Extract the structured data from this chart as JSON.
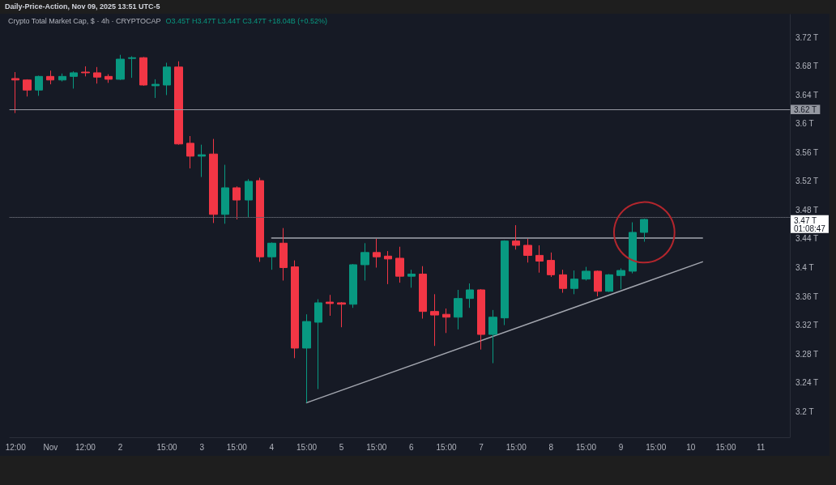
{
  "chart_data": {
    "type": "candlestick",
    "title": "Crypto Total Market Cap, $ · 4h · CRYPTOCAP",
    "subtitle": "O3.45T H3.47T L3.44T C3.47T +18.04B (+0.52%)",
    "annotations": [
      "Daily-Price-Action, Nov 09, 2025 13:51 UTC-5"
    ],
    "categories": [
      "12:00",
      null,
      null,
      "Nov",
      null,
      null,
      "12:00",
      null,
      null,
      "2",
      null,
      null,
      null,
      "15:00",
      null,
      null,
      "3",
      null,
      null,
      "15:00",
      null,
      null,
      "4",
      null,
      null,
      "15:00",
      null,
      null,
      "5",
      null,
      null,
      "15:00",
      null,
      null,
      "6",
      null,
      null,
      "15:00",
      null,
      null,
      "7",
      null,
      null,
      "15:00",
      null,
      null,
      "8",
      null,
      null,
      "15:00",
      null,
      null,
      "9",
      null,
      null,
      "15:00",
      null,
      null,
      "10",
      null,
      null,
      "15:00",
      null,
      null,
      "11",
      null,
      null
    ],
    "ohlc": [
      [
        3.663,
        3.672,
        3.615,
        3.661
      ],
      [
        3.661,
        3.662,
        3.638,
        3.647
      ],
      [
        3.647,
        3.667,
        3.639,
        3.666
      ],
      [
        3.666,
        3.674,
        3.655,
        3.661
      ],
      [
        3.661,
        3.67,
        3.659,
        3.666
      ],
      [
        3.666,
        3.673,
        3.649,
        3.671
      ],
      [
        3.672,
        3.68,
        3.666,
        3.671
      ],
      [
        3.671,
        3.679,
        3.656,
        3.665
      ],
      [
        3.666,
        3.669,
        3.657,
        3.662
      ],
      [
        3.662,
        3.696,
        3.661,
        3.69
      ],
      [
        3.691,
        3.694,
        3.664,
        3.692
      ],
      [
        3.692,
        3.693,
        3.653,
        3.654
      ],
      [
        3.653,
        3.662,
        3.636,
        3.655
      ],
      [
        3.654,
        3.685,
        3.64,
        3.679
      ],
      [
        3.679,
        3.687,
        3.571,
        3.572
      ],
      [
        3.573,
        3.583,
        3.538,
        3.555
      ],
      [
        3.555,
        3.571,
        3.526,
        3.557
      ],
      [
        3.558,
        3.579,
        3.462,
        3.474
      ],
      [
        3.474,
        3.543,
        3.461,
        3.511
      ],
      [
        3.511,
        3.513,
        3.467,
        3.494
      ],
      [
        3.494,
        3.523,
        3.47,
        3.52
      ],
      [
        3.521,
        3.525,
        3.408,
        3.415
      ],
      [
        3.415,
        3.435,
        3.397,
        3.434
      ],
      [
        3.434,
        3.455,
        3.382,
        3.4
      ],
      [
        3.401,
        3.41,
        3.274,
        3.288
      ],
      [
        3.288,
        3.335,
        3.212,
        3.325
      ],
      [
        3.324,
        3.356,
        3.231,
        3.351
      ],
      [
        3.352,
        3.362,
        3.333,
        3.35
      ],
      [
        3.351,
        3.352,
        3.317,
        3.349
      ],
      [
        3.349,
        3.405,
        3.344,
        3.404
      ],
      [
        3.404,
        3.434,
        3.382,
        3.421
      ],
      [
        3.421,
        3.44,
        3.4,
        3.415
      ],
      [
        3.416,
        3.423,
        3.377,
        3.412
      ],
      [
        3.413,
        3.429,
        3.379,
        3.388
      ],
      [
        3.388,
        3.397,
        3.372,
        3.391
      ],
      [
        3.391,
        3.402,
        3.329,
        3.339
      ],
      [
        3.339,
        3.363,
        3.291,
        3.334
      ],
      [
        3.335,
        3.343,
        3.309,
        3.331
      ],
      [
        3.331,
        3.369,
        3.314,
        3.357
      ],
      [
        3.357,
        3.378,
        3.344,
        3.369
      ],
      [
        3.369,
        3.37,
        3.286,
        3.307
      ],
      [
        3.307,
        3.341,
        3.267,
        3.331
      ],
      [
        3.33,
        3.438,
        3.32,
        3.437
      ],
      [
        3.437,
        3.459,
        3.425,
        3.431
      ],
      [
        3.431,
        3.44,
        3.407,
        3.417
      ],
      [
        3.417,
        3.431,
        3.393,
        3.409
      ],
      [
        3.41,
        3.421,
        3.387,
        3.39
      ],
      [
        3.39,
        3.397,
        3.365,
        3.371
      ],
      [
        3.371,
        3.396,
        3.363,
        3.384
      ],
      [
        3.384,
        3.401,
        3.382,
        3.395
      ],
      [
        3.395,
        3.396,
        3.36,
        3.367
      ],
      [
        3.367,
        3.391,
        3.366,
        3.39
      ],
      [
        3.389,
        3.399,
        3.37,
        3.396
      ],
      [
        3.395,
        3.463,
        3.392,
        3.449
      ],
      [
        3.449,
        3.468,
        3.436,
        3.467
      ],
      null,
      null,
      null,
      null,
      null,
      null,
      null,
      null,
      null,
      null,
      null,
      null
    ],
    "colors": [
      "#f23645",
      "#f23645",
      "#089981",
      "#f23645",
      "#089981",
      "#089981",
      "#f23645",
      "#f23645",
      "#f23645",
      "#089981",
      "#089981",
      "#f23645",
      "#089981",
      "#089981",
      "#f23645",
      "#f23645",
      "#089981",
      "#f23645",
      "#089981",
      "#f23645",
      "#089981",
      "#f23645",
      "#089981",
      "#f23645",
      "#f23645",
      "#089981",
      "#089981",
      "#f23645",
      "#f23645",
      "#089981",
      "#089981",
      "#f23645",
      "#f23645",
      "#f23645",
      "#089981",
      "#f23645",
      "#f23645",
      "#f23645",
      "#089981",
      "#089981",
      "#f23645",
      "#089981",
      "#089981",
      "#f23645",
      "#f23645",
      "#f23645",
      "#f23645",
      "#f23645",
      "#089981",
      "#089981",
      "#f23645",
      "#089981",
      "#089981",
      "#089981",
      "#089981",
      null,
      null,
      null,
      null,
      null,
      null,
      null,
      null,
      null,
      null,
      null,
      null
    ],
    "series": [
      {
        "type": "line",
        "color": "#a3a6af",
        "values": [
          null,
          null,
          null,
          null,
          null,
          null,
          null,
          null,
          null,
          null,
          null,
          null,
          null,
          null,
          null,
          null,
          null,
          null,
          null,
          null,
          null,
          null,
          null,
          null,
          null,
          3.212,
          null,
          null,
          null,
          null,
          null,
          null,
          null,
          null,
          null,
          null,
          null,
          null,
          null,
          null,
          null,
          null,
          null,
          null,
          null,
          null,
          null,
          null,
          null,
          null,
          null,
          null,
          null,
          null,
          null,
          null,
          null,
          null,
          null,
          3.408,
          null,
          null,
          null,
          null,
          null,
          null,
          null
        ]
      },
      {
        "type": "line",
        "color": "#a3a6af",
        "values": [
          null,
          null,
          null,
          null,
          null,
          null,
          null,
          null,
          null,
          null,
          null,
          null,
          null,
          null,
          null,
          null,
          null,
          null,
          null,
          null,
          null,
          null,
          3.441,
          null,
          null,
          null,
          null,
          null,
          null,
          null,
          null,
          null,
          null,
          null,
          null,
          null,
          null,
          null,
          null,
          null,
          null,
          null,
          null,
          null,
          null,
          null,
          null,
          null,
          null,
          null,
          null,
          null,
          null,
          null,
          null,
          null,
          null,
          null,
          null,
          3.441,
          null,
          null,
          null,
          null,
          null,
          null,
          null
        ]
      }
    ],
    "ylim": [
      3.164,
      3.752
    ],
    "yticks": [
      {
        "value": 3.2,
        "label": "3.2 T"
      },
      {
        "value": 3.24,
        "label": "3.24 T"
      },
      {
        "value": 3.28,
        "label": "3.28 T"
      },
      {
        "value": 3.32,
        "label": "3.32 T"
      },
      {
        "value": 3.36,
        "label": "3.36 T"
      },
      {
        "value": 3.4,
        "label": "3.4 T"
      },
      {
        "value": 3.44,
        "label": "3.44 T"
      },
      {
        "value": 3.48,
        "label": "3.48 T"
      },
      {
        "value": 3.52,
        "label": "3.52 T"
      },
      {
        "value": 3.56,
        "label": "3.56 T"
      },
      {
        "value": 3.6,
        "label": "3.6 T"
      },
      {
        "value": 3.64,
        "label": "3.64 T"
      },
      {
        "value": 3.68,
        "label": "3.68 T"
      },
      {
        "value": 3.72,
        "label": "3.72 T"
      }
    ],
    "ref_lines": [
      {
        "axis": "y",
        "value": 3.62,
        "label": "3.62 T",
        "color": "#9598a1"
      },
      {
        "axis": "y",
        "value": 3.47,
        "label": "3.47 T\n01:08:47",
        "color": "#5d606b",
        "line_style": "dotted"
      }
    ]
  }
}
